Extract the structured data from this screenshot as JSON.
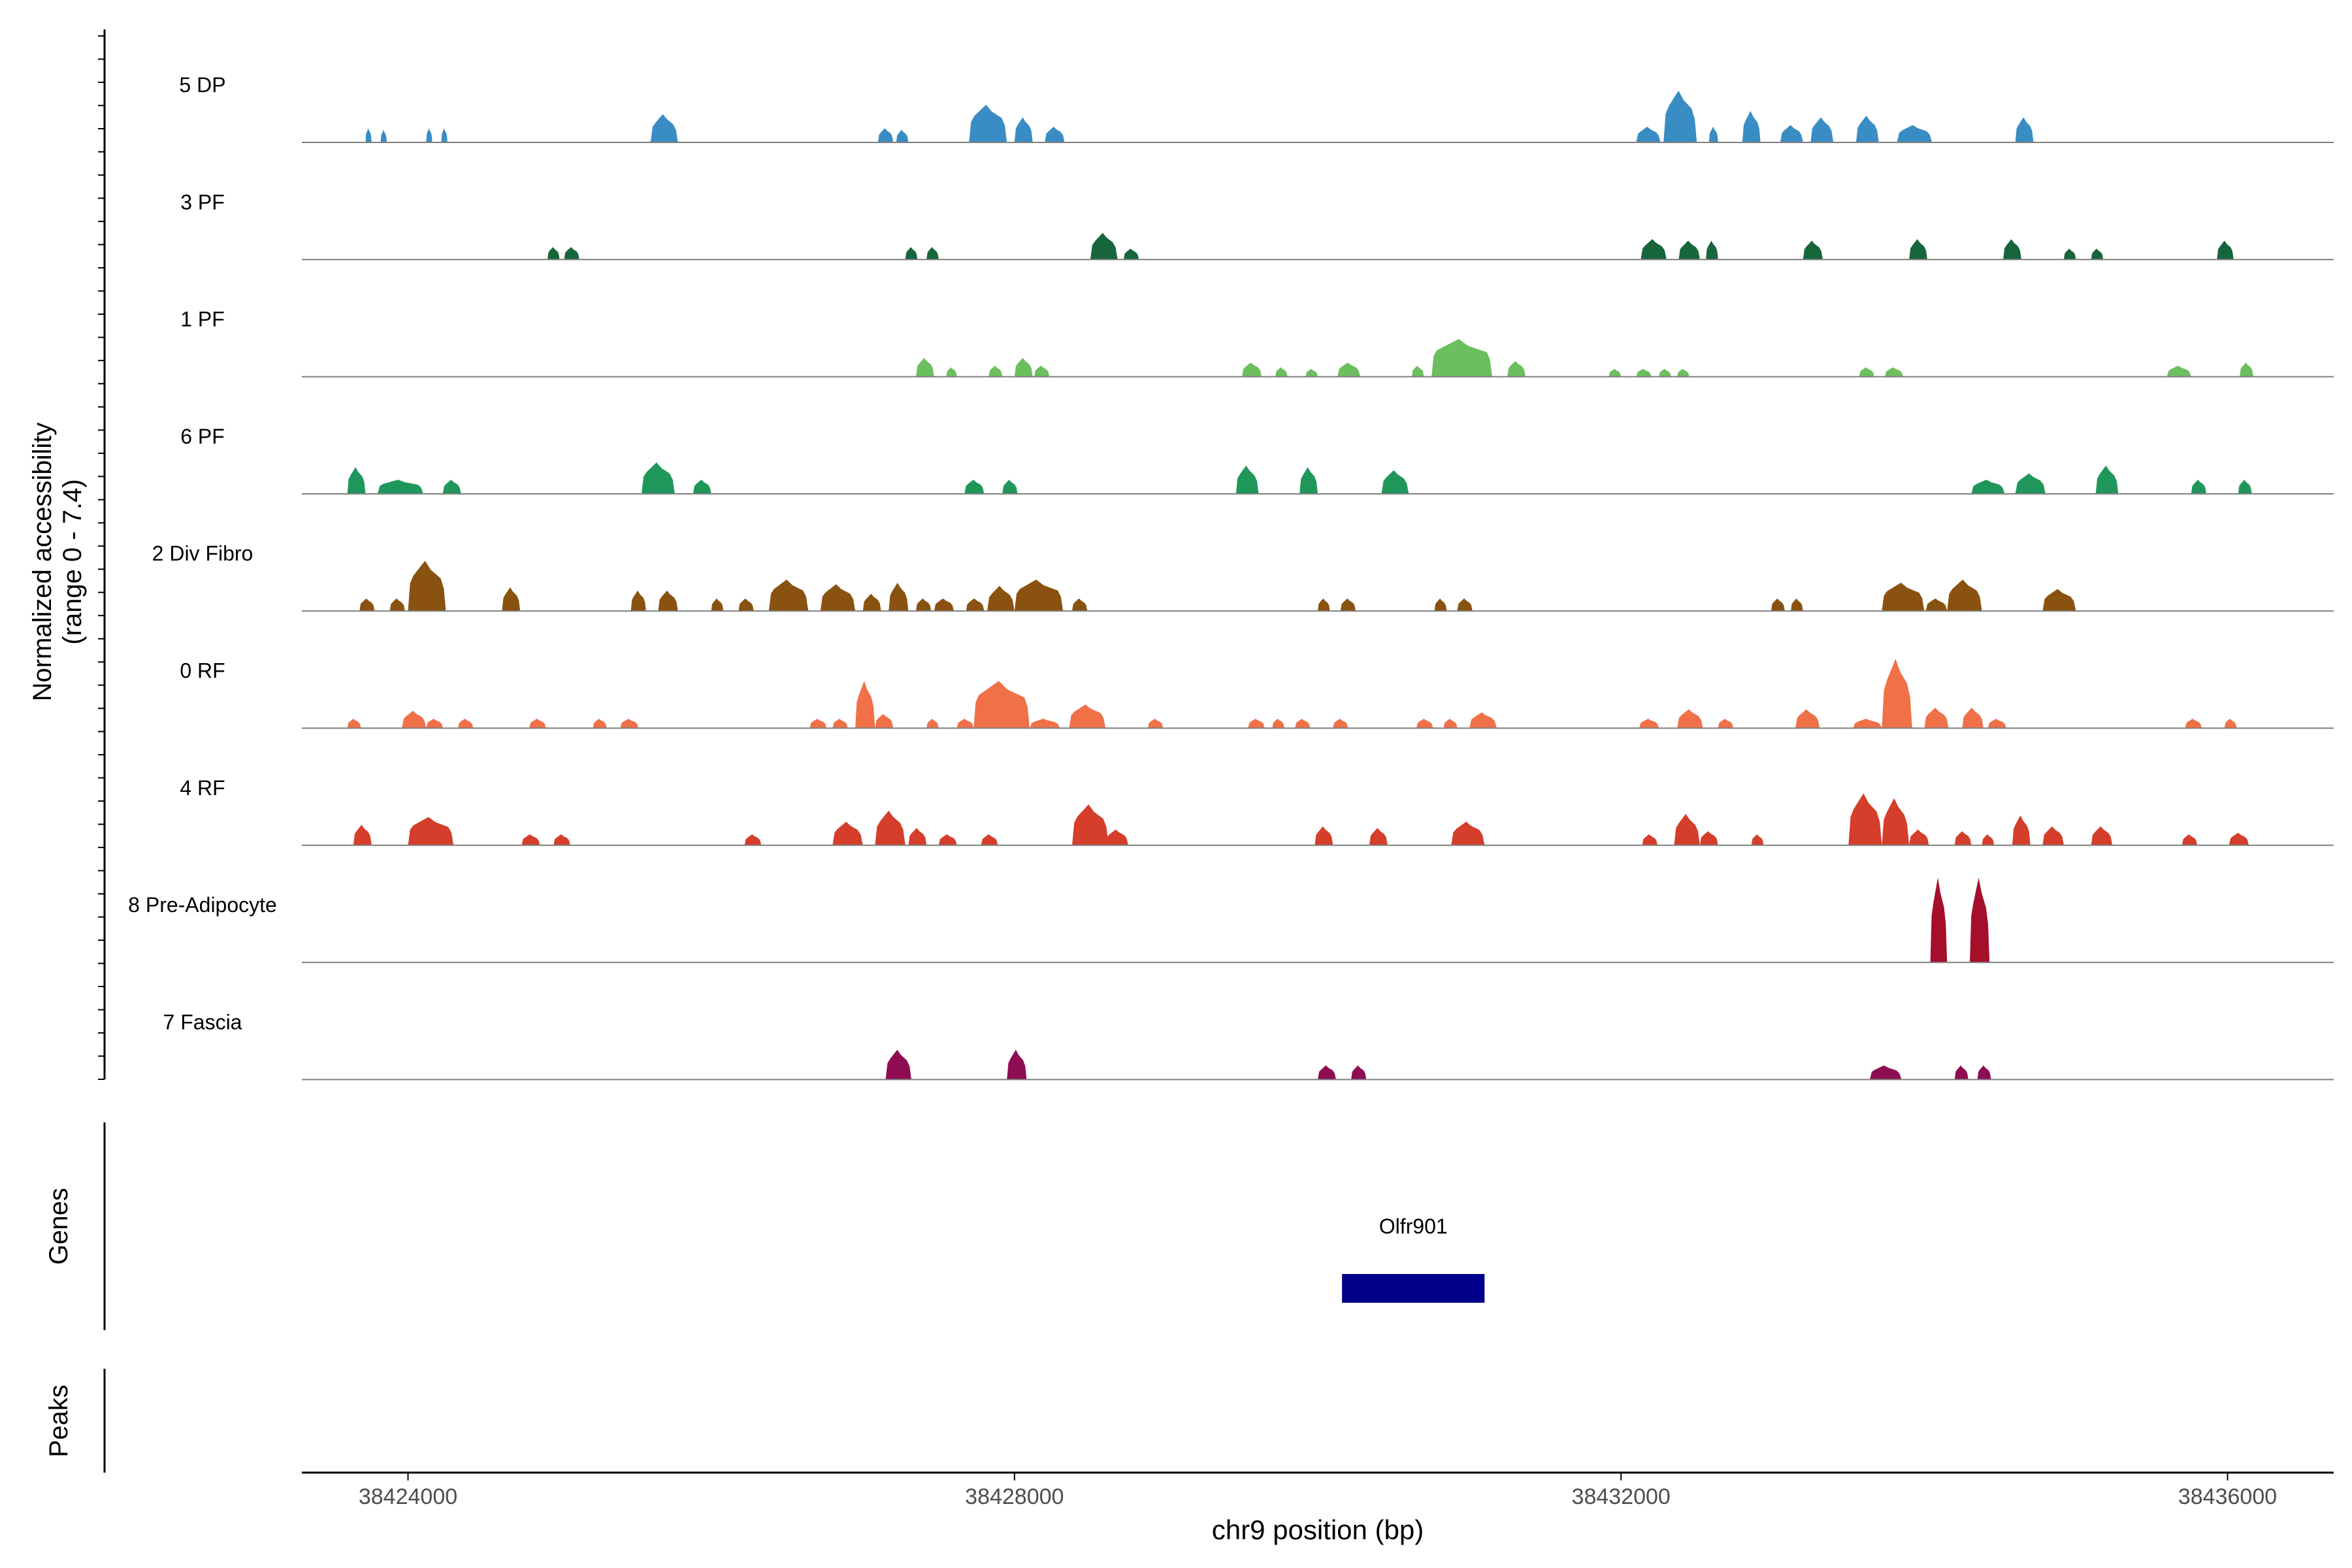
{
  "chart_data": {
    "type": "coverage-track",
    "chromosome": "chr9",
    "xlabel": "chr9 position (bp)",
    "xlim": [
      38423300,
      38436700
    ],
    "xticks": [
      38424000,
      38428000,
      38432000,
      38436000
    ],
    "xtick_labels": [
      "38424000",
      "38428000",
      "38432000",
      "38436000"
    ],
    "ylabel_line1": "Normalized accessibility",
    "ylabel_line2": "(range 0 - 7.4)",
    "y_range": [
      0,
      7.4
    ],
    "tracks": [
      {
        "name": "5 DP",
        "color": "#3a8cc4",
        "peaks": [
          [
            38423720,
            38423760,
            0.9
          ],
          [
            38423820,
            38423860,
            0.8
          ],
          [
            38424120,
            38424160,
            0.9
          ],
          [
            38424220,
            38424260,
            0.9
          ],
          [
            38425600,
            38425780,
            1.8
          ],
          [
            38427100,
            38427200,
            0.9
          ],
          [
            38427220,
            38427300,
            0.8
          ],
          [
            38427700,
            38427950,
            2.4
          ],
          [
            38428000,
            38428120,
            1.6
          ],
          [
            38428200,
            38428330,
            1.0
          ],
          [
            38432100,
            38432260,
            1.0
          ],
          [
            38432280,
            38432500,
            3.3
          ],
          [
            38432580,
            38432640,
            1.0
          ],
          [
            38432800,
            38432920,
            2.0
          ],
          [
            38433050,
            38433200,
            1.1
          ],
          [
            38433250,
            38433400,
            1.6
          ],
          [
            38433550,
            38433700,
            1.7
          ],
          [
            38433820,
            38434050,
            1.1
          ],
          [
            38434600,
            38434720,
            1.6
          ]
        ]
      },
      {
        "name": "3 PF",
        "color": "#17653a",
        "peaks": [
          [
            38424920,
            38425000,
            0.8
          ],
          [
            38425030,
            38425130,
            0.8
          ],
          [
            38427280,
            38427360,
            0.8
          ],
          [
            38427420,
            38427500,
            0.8
          ],
          [
            38428500,
            38428680,
            1.7
          ],
          [
            38428720,
            38428820,
            0.7
          ],
          [
            38432130,
            38432300,
            1.3
          ],
          [
            38432380,
            38432520,
            1.2
          ],
          [
            38432560,
            38432640,
            1.2
          ],
          [
            38433200,
            38433330,
            1.2
          ],
          [
            38433900,
            38434020,
            1.3
          ],
          [
            38434520,
            38434640,
            1.3
          ],
          [
            38434920,
            38435000,
            0.7
          ],
          [
            38435100,
            38435180,
            0.7
          ],
          [
            38435930,
            38436040,
            1.2
          ]
        ]
      },
      {
        "name": "1 PF",
        "color": "#6cbf5e",
        "peaks": [
          [
            38427350,
            38427470,
            1.2
          ],
          [
            38427550,
            38427620,
            0.6
          ],
          [
            38427830,
            38427920,
            0.7
          ],
          [
            38428000,
            38428120,
            1.2
          ],
          [
            38428130,
            38428230,
            0.7
          ],
          [
            38429500,
            38429630,
            0.9
          ],
          [
            38429720,
            38429800,
            0.6
          ],
          [
            38429920,
            38430000,
            0.5
          ],
          [
            38430130,
            38430280,
            0.9
          ],
          [
            38430620,
            38430700,
            0.7
          ],
          [
            38430750,
            38431150,
            2.4
          ],
          [
            38431250,
            38431370,
            1.0
          ],
          [
            38431920,
            38432000,
            0.5
          ],
          [
            38432100,
            38432200,
            0.5
          ],
          [
            38432250,
            38432330,
            0.5
          ],
          [
            38432370,
            38432450,
            0.5
          ],
          [
            38433570,
            38433670,
            0.6
          ],
          [
            38433740,
            38433860,
            0.6
          ],
          [
            38435600,
            38435760,
            0.7
          ],
          [
            38436080,
            38436170,
            0.9
          ]
        ]
      },
      {
        "name": "6 PF",
        "color": "#20975a",
        "peaks": [
          [
            38423600,
            38423720,
            1.7
          ],
          [
            38423800,
            38424100,
            0.9
          ],
          [
            38424230,
            38424350,
            0.9
          ],
          [
            38425540,
            38425760,
            2.0
          ],
          [
            38425880,
            38426000,
            0.9
          ],
          [
            38427670,
            38427800,
            0.9
          ],
          [
            38427920,
            38428020,
            0.9
          ],
          [
            38429460,
            38429610,
            1.8
          ],
          [
            38429880,
            38430000,
            1.7
          ],
          [
            38430420,
            38430600,
            1.5
          ],
          [
            38434310,
            38434530,
            0.9
          ],
          [
            38434600,
            38434800,
            1.3
          ],
          [
            38435130,
            38435280,
            1.8
          ],
          [
            38435760,
            38435860,
            0.9
          ],
          [
            38436070,
            38436160,
            0.9
          ]
        ]
      },
      {
        "name": "2 Div Fibro",
        "color": "#8a5210",
        "peaks": [
          [
            38423680,
            38423780,
            0.8
          ],
          [
            38423880,
            38423980,
            0.8
          ],
          [
            38424000,
            38424250,
            3.2
          ],
          [
            38424620,
            38424740,
            1.5
          ],
          [
            38425470,
            38425570,
            1.3
          ],
          [
            38425650,
            38425780,
            1.3
          ],
          [
            38426000,
            38426080,
            0.8
          ],
          [
            38426180,
            38426280,
            0.8
          ],
          [
            38426380,
            38426640,
            2.0
          ],
          [
            38426720,
            38426950,
            1.7
          ],
          [
            38427000,
            38427120,
            1.1
          ],
          [
            38427170,
            38427300,
            1.8
          ],
          [
            38427350,
            38427450,
            0.8
          ],
          [
            38427470,
            38427600,
            0.8
          ],
          [
            38427680,
            38427800,
            0.8
          ],
          [
            38427820,
            38428000,
            1.6
          ],
          [
            38428000,
            38428320,
            2.0
          ],
          [
            38428380,
            38428480,
            0.8
          ],
          [
            38430000,
            38430080,
            0.8
          ],
          [
            38430150,
            38430250,
            0.8
          ],
          [
            38430770,
            38430850,
            0.8
          ],
          [
            38430920,
            38431020,
            0.8
          ],
          [
            38432990,
            38433080,
            0.8
          ],
          [
            38433120,
            38433200,
            0.8
          ],
          [
            38433720,
            38434000,
            1.8
          ],
          [
            38434010,
            38434150,
            0.8
          ],
          [
            38434150,
            38434380,
            2.0
          ],
          [
            38434780,
            38435000,
            1.4
          ]
        ]
      },
      {
        "name": "0 RF",
        "color": "#f07048",
        "peaks": [
          [
            38423600,
            38423690,
            0.6
          ],
          [
            38423960,
            38424120,
            1.1
          ],
          [
            38424120,
            38424230,
            0.6
          ],
          [
            38424330,
            38424430,
            0.6
          ],
          [
            38424800,
            38424910,
            0.6
          ],
          [
            38425220,
            38425310,
            0.6
          ],
          [
            38425400,
            38425520,
            0.6
          ],
          [
            38426650,
            38426760,
            0.6
          ],
          [
            38426800,
            38426900,
            0.6
          ],
          [
            38426950,
            38427080,
            3.0
          ],
          [
            38427080,
            38427200,
            0.9
          ],
          [
            38427420,
            38427500,
            0.6
          ],
          [
            38427620,
            38427730,
            0.6
          ],
          [
            38427730,
            38428100,
            3.0
          ],
          [
            38428100,
            38428300,
            0.6
          ],
          [
            38428360,
            38428600,
            1.5
          ],
          [
            38428880,
            38428980,
            0.6
          ],
          [
            38429540,
            38429650,
            0.6
          ],
          [
            38429700,
            38429780,
            0.6
          ],
          [
            38429850,
            38429950,
            0.6
          ],
          [
            38430100,
            38430200,
            0.6
          ],
          [
            38430650,
            38430760,
            0.6
          ],
          [
            38430830,
            38430920,
            0.6
          ],
          [
            38431000,
            38431180,
            1.0
          ],
          [
            38432120,
            38432250,
            0.6
          ],
          [
            38432370,
            38432540,
            1.2
          ],
          [
            38432640,
            38432740,
            0.6
          ],
          [
            38433150,
            38433310,
            1.2
          ],
          [
            38433530,
            38433720,
            0.6
          ],
          [
            38433720,
            38433920,
            4.4
          ],
          [
            38434000,
            38434160,
            1.3
          ],
          [
            38434250,
            38434390,
            1.3
          ],
          [
            38434420,
            38434540,
            0.6
          ],
          [
            38435720,
            38435830,
            0.6
          ],
          [
            38435980,
            38436060,
            0.6
          ]
        ]
      },
      {
        "name": "4 RF",
        "color": "#d43e2a",
        "peaks": [
          [
            38423640,
            38423760,
            1.3
          ],
          [
            38424000,
            38424300,
            1.8
          ],
          [
            38424750,
            38424870,
            0.7
          ],
          [
            38424960,
            38425070,
            0.7
          ],
          [
            38426220,
            38426330,
            0.7
          ],
          [
            38426800,
            38427000,
            1.5
          ],
          [
            38427080,
            38427280,
            2.2
          ],
          [
            38427300,
            38427420,
            1.1
          ],
          [
            38427500,
            38427620,
            0.7
          ],
          [
            38427780,
            38427890,
            0.7
          ],
          [
            38428380,
            38428620,
            2.6
          ],
          [
            38428600,
            38428750,
            1.0
          ],
          [
            38429980,
            38430100,
            1.2
          ],
          [
            38430340,
            38430460,
            1.1
          ],
          [
            38430880,
            38431100,
            1.5
          ],
          [
            38432140,
            38432240,
            0.7
          ],
          [
            38432350,
            38432520,
            2.0
          ],
          [
            38432520,
            38432640,
            0.9
          ],
          [
            38432860,
            38432940,
            0.7
          ],
          [
            38433500,
            38433720,
            3.3
          ],
          [
            38433720,
            38433900,
            3.0
          ],
          [
            38433900,
            38434030,
            1.0
          ],
          [
            38434200,
            38434310,
            0.9
          ],
          [
            38434380,
            38434460,
            0.7
          ],
          [
            38434580,
            38434700,
            1.9
          ],
          [
            38434780,
            38434920,
            1.2
          ],
          [
            38435100,
            38435240,
            1.2
          ],
          [
            38435700,
            38435800,
            0.7
          ],
          [
            38436010,
            38436140,
            0.8
          ]
        ]
      },
      {
        "name": "8 Pre-Adipocyte",
        "color": "#a50f2c",
        "peaks": [
          [
            38434040,
            38434150,
            5.4
          ],
          [
            38434300,
            38434430,
            5.4
          ]
        ]
      },
      {
        "name": "7 Fascia",
        "color": "#8e0d52",
        "peaks": [
          [
            38427150,
            38427320,
            1.9
          ],
          [
            38427950,
            38428080,
            1.9
          ],
          [
            38430000,
            38430120,
            0.9
          ],
          [
            38430220,
            38430320,
            0.9
          ],
          [
            38433640,
            38433850,
            0.9
          ],
          [
            38434200,
            38434290,
            0.9
          ],
          [
            38434350,
            38434440,
            0.9
          ]
        ]
      }
    ],
    "genes_panel_label": "Genes",
    "genes": [
      {
        "name": "Olfr901",
        "start": 38430160,
        "end": 38431100,
        "color": "#00008b"
      }
    ],
    "peaks_panel_label": "Peaks"
  }
}
